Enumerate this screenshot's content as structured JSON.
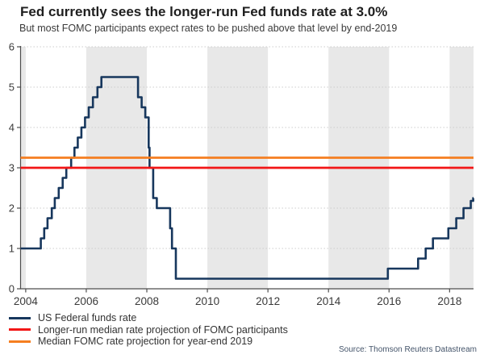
{
  "chart_data": {
    "type": "line",
    "title": "Fed currently sees the longer-run Fed funds rate at 3.0%",
    "subtitle": "But most FOMC participants expect rates to be pushed above that level by end-2019",
    "source": "Source: Thomson Reuters Datastream",
    "xlabel": "",
    "ylabel": "",
    "xlim": [
      2003.83,
      2018.79
    ],
    "ylim": [
      0,
      6
    ],
    "x_ticks": [
      2004,
      2006,
      2008,
      2010,
      2012,
      2014,
      2016,
      2018
    ],
    "y_ticks": [
      0,
      1,
      2,
      3,
      4,
      5,
      6
    ],
    "grid": "horizontal-dotted",
    "legend_position": "bottom-left",
    "shaded_year_bands": [
      [
        2003.83,
        2004
      ],
      [
        2006,
        2008
      ],
      [
        2010,
        2012
      ],
      [
        2014,
        2016
      ],
      [
        2018,
        2018.79
      ]
    ],
    "series": [
      {
        "name": "US Federal funds rate",
        "type": "step",
        "color": "#17375d",
        "points": [
          [
            2003.83,
            1.0
          ],
          [
            2004.5,
            1.25
          ],
          [
            2004.61,
            1.5
          ],
          [
            2004.72,
            1.75
          ],
          [
            2004.86,
            2.0
          ],
          [
            2004.96,
            2.25
          ],
          [
            2005.09,
            2.5
          ],
          [
            2005.22,
            2.75
          ],
          [
            2005.34,
            3.0
          ],
          [
            2005.5,
            3.25
          ],
          [
            2005.61,
            3.5
          ],
          [
            2005.72,
            3.75
          ],
          [
            2005.84,
            4.0
          ],
          [
            2005.96,
            4.25
          ],
          [
            2006.08,
            4.5
          ],
          [
            2006.22,
            4.75
          ],
          [
            2006.37,
            5.0
          ],
          [
            2006.5,
            5.25
          ],
          [
            2007.71,
            4.75
          ],
          [
            2007.83,
            4.5
          ],
          [
            2007.95,
            4.25
          ],
          [
            2008.06,
            3.5
          ],
          [
            2008.09,
            3.0
          ],
          [
            2008.21,
            2.25
          ],
          [
            2008.33,
            2.0
          ],
          [
            2008.77,
            1.5
          ],
          [
            2008.83,
            1.0
          ],
          [
            2008.96,
            0.25
          ],
          [
            2015.96,
            0.5
          ],
          [
            2016.96,
            0.75
          ],
          [
            2017.21,
            1.0
          ],
          [
            2017.45,
            1.25
          ],
          [
            2017.96,
            1.5
          ],
          [
            2018.22,
            1.75
          ],
          [
            2018.46,
            2.0
          ],
          [
            2018.7,
            2.18
          ],
          [
            2018.78,
            2.25
          ]
        ]
      },
      {
        "name": "Longer-run median rate projection of FOMC participants",
        "type": "hline",
        "color": "#f21616",
        "value": 3.0
      },
      {
        "name": "Median FOMC rate projection for year-end 2019",
        "type": "hline",
        "color": "#f57e20",
        "value": 3.25
      }
    ],
    "colors": {
      "band": "#e8e8e8",
      "gridline": "#cdcdcd",
      "axis": "#4d4d4d",
      "tick_label": "#3a3a3a"
    }
  }
}
